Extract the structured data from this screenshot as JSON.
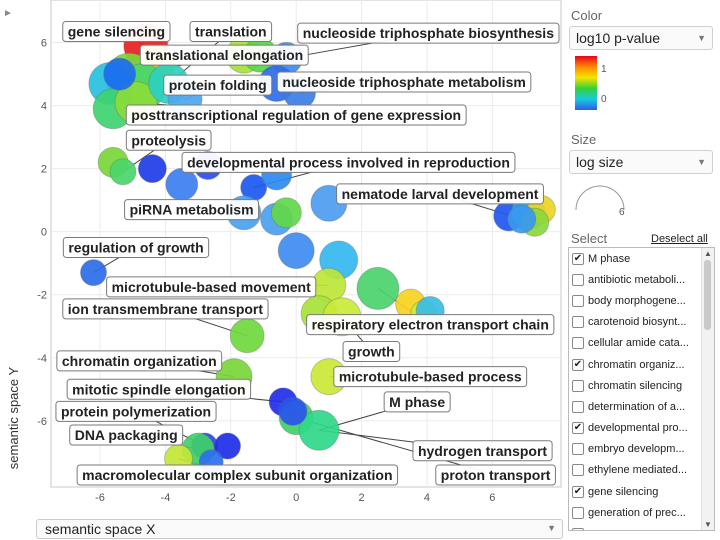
{
  "y_axis_label": "semantic space Y",
  "x_axis_selector": {
    "value": "semantic space X"
  },
  "sidebar": {
    "color_label": "Color",
    "color_value": "log10 p-value",
    "legend_ticks": [
      "1",
      "0"
    ],
    "size_label": "Size",
    "size_value": "log size",
    "size_tick": "6",
    "select_label": "Select",
    "deselect_all": "Deselect all",
    "items": [
      {
        "label": "M phase",
        "checked": true
      },
      {
        "label": "antibiotic metaboli...",
        "checked": false
      },
      {
        "label": "body morphogene...",
        "checked": false
      },
      {
        "label": "carotenoid biosynt...",
        "checked": false
      },
      {
        "label": "cellular amide cata...",
        "checked": false
      },
      {
        "label": "chromatin organiz...",
        "checked": true
      },
      {
        "label": "chromatin silencing",
        "checked": false
      },
      {
        "label": "determination of a...",
        "checked": false
      },
      {
        "label": "developmental pro...",
        "checked": true
      },
      {
        "label": "embryo developm...",
        "checked": false
      },
      {
        "label": "ethylene mediated...",
        "checked": false
      },
      {
        "label": "gene silencing",
        "checked": true
      },
      {
        "label": "generation of prec...",
        "checked": false
      },
      {
        "label": "",
        "checked": false
      }
    ]
  },
  "chart_data": {
    "type": "scatter",
    "xlabel": "semantic space X",
    "ylabel": "semantic space Y",
    "xlim": [
      -7.5,
      8.1
    ],
    "ylim": [
      -8.1,
      7.35
    ],
    "x_ticks": [
      -6,
      -4,
      -2,
      0,
      2,
      4,
      6
    ],
    "y_ticks": [
      6,
      4,
      2,
      0,
      -2,
      -4,
      -6
    ],
    "color_scale": "log10 p-value",
    "points": [
      {
        "x": -4.6,
        "y": 5.9,
        "size": 22,
        "color": "#e81f1f"
      },
      {
        "x": -4.3,
        "y": 5.3,
        "size": 19,
        "color": "#f1c40f"
      },
      {
        "x": -5.1,
        "y": 4.9,
        "size": 24,
        "color": "#7bd63a"
      },
      {
        "x": -4.7,
        "y": 4.6,
        "size": 23,
        "color": "#4ad66a"
      },
      {
        "x": -5.7,
        "y": 4.7,
        "size": 21,
        "color": "#27c0e0"
      },
      {
        "x": -5.6,
        "y": 3.9,
        "size": 20,
        "color": "#3fd36f"
      },
      {
        "x": -4.9,
        "y": 4.1,
        "size": 21,
        "color": "#89dc3a"
      },
      {
        "x": -5.4,
        "y": 5.0,
        "size": 16,
        "color": "#1c6cf0"
      },
      {
        "x": -3.9,
        "y": 4.7,
        "size": 20,
        "color": "#2cd0c0"
      },
      {
        "x": -1.6,
        "y": 5.6,
        "size": 18,
        "color": "#a3e23a"
      },
      {
        "x": -1.1,
        "y": 5.6,
        "size": 17,
        "color": "#57d845"
      },
      {
        "x": -0.3,
        "y": 5.5,
        "size": 16,
        "color": "#3d8bf0"
      },
      {
        "x": -0.6,
        "y": 4.7,
        "size": 18,
        "color": "#2f6de8"
      },
      {
        "x": 0.1,
        "y": 4.4,
        "size": 16,
        "color": "#3a7de6"
      },
      {
        "x": -3.4,
        "y": 4.2,
        "size": 17,
        "color": "#4da6f0"
      },
      {
        "x": -5.6,
        "y": 2.2,
        "size": 15,
        "color": "#7ad63a"
      },
      {
        "x": -5.3,
        "y": 1.9,
        "size": 13,
        "color": "#4ad66a"
      },
      {
        "x": -4.4,
        "y": 2.0,
        "size": 14,
        "color": "#1e3ce8"
      },
      {
        "x": -3.5,
        "y": 1.5,
        "size": 16,
        "color": "#3c7ef0"
      },
      {
        "x": -2.7,
        "y": 2.1,
        "size": 14,
        "color": "#2a4cf0"
      },
      {
        "x": -1.3,
        "y": 1.4,
        "size": 13,
        "color": "#1a58f0"
      },
      {
        "x": -0.6,
        "y": 1.8,
        "size": 15,
        "color": "#2b8af0"
      },
      {
        "x": -1.6,
        "y": 0.6,
        "size": 17,
        "color": "#4aa0f0"
      },
      {
        "x": -0.6,
        "y": 0.4,
        "size": 16,
        "color": "#4aa0f0"
      },
      {
        "x": -0.3,
        "y": 0.6,
        "size": 15,
        "color": "#62d84a"
      },
      {
        "x": 0.0,
        "y": -0.6,
        "size": 18,
        "color": "#3f8cf0"
      },
      {
        "x": 1.0,
        "y": 0.9,
        "size": 18,
        "color": "#4d9cf0"
      },
      {
        "x": -6.2,
        "y": -1.3,
        "size": 13,
        "color": "#2c6ce8"
      },
      {
        "x": 1.3,
        "y": -0.9,
        "size": 19,
        "color": "#34b8f0"
      },
      {
        "x": 1.0,
        "y": -1.7,
        "size": 17,
        "color": "#bde637"
      },
      {
        "x": 0.7,
        "y": -2.6,
        "size": 18,
        "color": "#a8e23a"
      },
      {
        "x": 1.4,
        "y": -2.7,
        "size": 19,
        "color": "#caea36"
      },
      {
        "x": 2.5,
        "y": -1.8,
        "size": 21,
        "color": "#4ad36c"
      },
      {
        "x": 3.5,
        "y": -2.3,
        "size": 15,
        "color": "#f6d321"
      },
      {
        "x": 3.9,
        "y": -2.6,
        "size": 13,
        "color": "#c9ec37"
      },
      {
        "x": 4.1,
        "y": -2.5,
        "size": 14,
        "color": "#37bde7"
      },
      {
        "x": -1.5,
        "y": -3.3,
        "size": 17,
        "color": "#6fd83e"
      },
      {
        "x": -1.9,
        "y": -4.6,
        "size": 18,
        "color": "#7ad63a"
      },
      {
        "x": 1.0,
        "y": -4.6,
        "size": 18,
        "color": "#cbe837"
      },
      {
        "x": -0.4,
        "y": -5.4,
        "size": 14,
        "color": "#1f2ee8"
      },
      {
        "x": 0.0,
        "y": -5.9,
        "size": 17,
        "color": "#3fd068"
      },
      {
        "x": 0.7,
        "y": -6.3,
        "size": 20,
        "color": "#2fd88a"
      },
      {
        "x": -0.1,
        "y": -5.7,
        "size": 14,
        "color": "#2854ef"
      },
      {
        "x": -2.8,
        "y": -6.8,
        "size": 13,
        "color": "#2a44ee"
      },
      {
        "x": -2.1,
        "y": -6.8,
        "size": 13,
        "color": "#1e2ee8"
      },
      {
        "x": -3.0,
        "y": -6.9,
        "size": 16,
        "color": "#3fd068"
      },
      {
        "x": -3.6,
        "y": -7.2,
        "size": 14,
        "color": "#c2e637"
      },
      {
        "x": -2.6,
        "y": -7.3,
        "size": 12,
        "color": "#2b6ff0"
      },
      {
        "x": 6.5,
        "y": 0.5,
        "size": 15,
        "color": "#1f58f0"
      },
      {
        "x": 7.1,
        "y": 0.6,
        "size": 17,
        "color": "#2caee8"
      },
      {
        "x": 7.5,
        "y": 0.7,
        "size": 14,
        "color": "#ecd624"
      },
      {
        "x": 7.3,
        "y": 0.3,
        "size": 14,
        "color": "#8bd83c"
      },
      {
        "x": 6.9,
        "y": 0.4,
        "size": 14,
        "color": "#3a98f0"
      }
    ],
    "labels": [
      {
        "text": "gene silencing",
        "x": -5.5,
        "y": 6.35,
        "tx": -4.6,
        "ty": 5.9
      },
      {
        "text": "translation",
        "x": -2.0,
        "y": 6.35,
        "tx": -3.9,
        "ty": 4.7
      },
      {
        "text": "nucleoside triphosphate biosynthesis",
        "x": 4.1,
        "y": 6.3,
        "tx": -0.3,
        "ty": 5.5
      },
      {
        "text": "translational elongation",
        "x": -2.2,
        "y": 5.6,
        "tx": -5.1,
        "ty": 4.9
      },
      {
        "text": "nucleoside triphosphate metabolism",
        "x": 3.3,
        "y": 4.75,
        "tx": 0.1,
        "ty": 4.4
      },
      {
        "text": "protein folding",
        "x": -2.4,
        "y": 4.65,
        "tx": -3.4,
        "ty": 4.2
      },
      {
        "text": "posttranscriptional regulation of gene expression",
        "x": 0.0,
        "y": 3.7,
        "tx": -4.9,
        "ty": 4.1
      },
      {
        "text": "proteolysis",
        "x": -3.9,
        "y": 2.9,
        "tx": -5.3,
        "ty": 1.9
      },
      {
        "text": "developmental process involved in reproduction",
        "x": 1.6,
        "y": 2.2,
        "tx": -1.3,
        "ty": 1.4
      },
      {
        "text": "nematode larval development",
        "x": 4.4,
        "y": 1.2,
        "tx": 6.9,
        "ty": 0.4
      },
      {
        "text": "piRNA metabolism",
        "x": -3.2,
        "y": 0.7,
        "tx": -1.6,
        "ty": 0.6
      },
      {
        "text": "regulation of growth",
        "x": -4.9,
        "y": -0.5,
        "tx": -6.2,
        "ty": -1.3
      },
      {
        "text": "microtubule-based movement",
        "x": -2.6,
        "y": -1.75,
        "tx": 1.0,
        "ty": -1.7
      },
      {
        "text": "ion transmembrane transport",
        "x": -4.0,
        "y": -2.45,
        "tx": -1.5,
        "ty": -3.3
      },
      {
        "text": "respiratory electron transport chain",
        "x": 4.1,
        "y": -2.95,
        "tx": 2.5,
        "ty": -1.8
      },
      {
        "text": "growth",
        "x": 2.3,
        "y": -3.8,
        "tx": 1.4,
        "ty": -2.7
      },
      {
        "text": "chromatin organization",
        "x": -4.8,
        "y": -4.1,
        "tx": -1.9,
        "ty": -4.6
      },
      {
        "text": "microtubule-based process",
        "x": 4.1,
        "y": -4.6,
        "tx": 1.0,
        "ty": -4.6
      },
      {
        "text": "mitotic spindle elongation",
        "x": -4.2,
        "y": -5.0,
        "tx": -0.4,
        "ty": -5.4
      },
      {
        "text": "M phase",
        "x": 3.7,
        "y": -5.4,
        "tx": 0.7,
        "ty": -6.3
      },
      {
        "text": "protein polymerization",
        "x": -4.9,
        "y": -5.7,
        "tx": -2.8,
        "ty": -6.8
      },
      {
        "text": "DNA packaging",
        "x": -5.2,
        "y": -6.45,
        "tx": -3.0,
        "ty": -6.9
      },
      {
        "text": "hydrogen transport",
        "x": 5.7,
        "y": -6.95,
        "tx": 0.7,
        "ty": -6.3
      },
      {
        "text": "macromolecular complex subunit organization",
        "x": -1.8,
        "y": -7.8,
        "tx": -3.6,
        "ty": -7.2
      },
      {
        "text": "proton transport",
        "x": 6.1,
        "y": -7.8,
        "tx": 0.0,
        "ty": -5.9
      }
    ]
  }
}
